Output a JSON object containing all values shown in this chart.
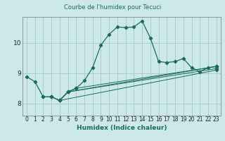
{
  "title": "Courbe de l'humidex pour Tecuci",
  "xlabel": "Humidex (Indice chaleur)",
  "bg_color": "#cce8e8",
  "grid_color": "#aacccc",
  "line_color": "#1a6b5a",
  "xlim": [
    -0.5,
    23.5
  ],
  "ylim": [
    7.6,
    10.85
  ],
  "yticks": [
    8,
    9,
    10
  ],
  "xticks": [
    0,
    1,
    2,
    3,
    4,
    5,
    6,
    7,
    8,
    9,
    10,
    11,
    12,
    13,
    14,
    15,
    16,
    17,
    18,
    19,
    20,
    21,
    22,
    23
  ],
  "series1_x": [
    0,
    1,
    2,
    3,
    4,
    5,
    6,
    7,
    8,
    9,
    10,
    11,
    12,
    13,
    14,
    15,
    16,
    17,
    18,
    19,
    20,
    21,
    22,
    23
  ],
  "series1_y": [
    8.88,
    8.72,
    8.22,
    8.22,
    8.1,
    8.38,
    8.5,
    8.75,
    9.18,
    9.92,
    10.28,
    10.52,
    10.5,
    10.52,
    10.72,
    10.15,
    9.38,
    9.35,
    9.38,
    9.48,
    9.18,
    9.05,
    9.18,
    9.22
  ],
  "series2_x": [
    2,
    3,
    4,
    5,
    6,
    23
  ],
  "series2_y": [
    8.22,
    8.22,
    8.1,
    8.38,
    8.5,
    9.22
  ],
  "series3_x": [
    3,
    4,
    5,
    23
  ],
  "series3_y": [
    8.22,
    8.1,
    8.38,
    9.22
  ],
  "series4_x": [
    4,
    5,
    23
  ],
  "series4_y": [
    8.1,
    8.38,
    9.15
  ],
  "series5_x": [
    4,
    23
  ],
  "series5_y": [
    8.1,
    9.1
  ]
}
